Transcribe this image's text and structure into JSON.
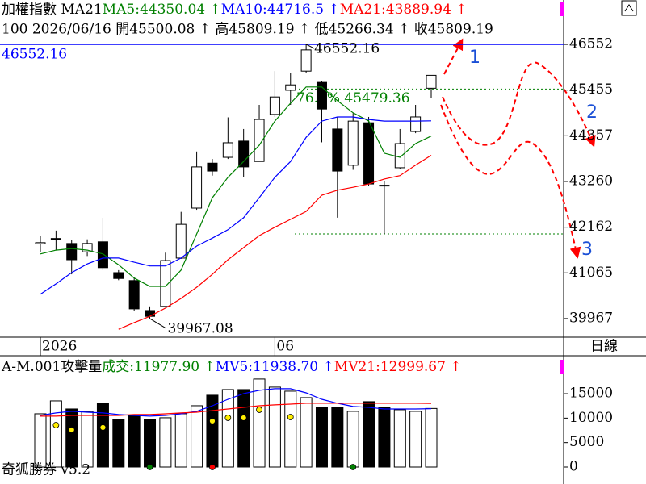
{
  "chart_data": [
    {
      "type": "candlestick",
      "title": "加權指數 MA21",
      "subtitle": "100 2026/06/16 開45500.08 ↑ 高45809.19 ↑ 低45266.34 ↑ 收45809.19",
      "period": "日線",
      "categories": [
        "2026",
        null,
        null,
        null,
        null,
        null,
        null,
        null,
        null,
        null,
        null,
        null,
        null,
        null,
        null,
        "06",
        null,
        null,
        null,
        null,
        null,
        null,
        null,
        null,
        null,
        null
      ],
      "open": [
        41760,
        41880,
        41770,
        41570,
        41810,
        41070,
        40880,
        40160,
        40260,
        41420,
        42620,
        43700,
        43840,
        44230,
        43740,
        44870,
        45450,
        45910,
        45640,
        44520,
        43650,
        44670,
        43170,
        43590,
        44460,
        45500.08
      ],
      "high": [
        41960,
        42080,
        41850,
        41870,
        42390,
        41130,
        40960,
        40260,
        41550,
        42530,
        43980,
        43800,
        44800,
        44520,
        45100,
        45910,
        45870,
        46552.16,
        45680,
        44810,
        44900,
        44810,
        43260,
        44520,
        45100,
        45809.19
      ],
      "low": [
        41570,
        41610,
        41030,
        41470,
        41130,
        40890,
        40160,
        39967.08,
        40240,
        41400,
        42580,
        43400,
        43800,
        43360,
        43740,
        44810,
        45100,
        45870,
        44200,
        42390,
        43540,
        43160,
        42000,
        43550,
        44420,
        45266.34
      ],
      "close": [
        41790,
        41890,
        41380,
        41770,
        41190,
        40930,
        40200,
        40020,
        41360,
        42230,
        43610,
        43510,
        44190,
        43610,
        44750,
        45290,
        45580,
        46420,
        45000,
        43510,
        44710,
        43200,
        43160,
        44170,
        44810,
        45809.19
      ],
      "series": [
        {
          "name": "MA5:44350.04 ↑",
          "color": "#008000",
          "values": [
            41520,
            41610,
            41650,
            41610,
            41520,
            41260,
            40940,
            40740,
            40740,
            41130,
            42000,
            42870,
            43360,
            43740,
            44130,
            44710,
            45140,
            45530,
            45530,
            45200,
            44910,
            44710,
            43940,
            43840,
            44170,
            44350.04
          ]
        },
        {
          "name": "MA10:44716.5 ↑",
          "color": "#0000ff",
          "values": [
            40550,
            40800,
            41070,
            41280,
            41420,
            41420,
            41320,
            41230,
            41230,
            41420,
            41710,
            41900,
            42100,
            42390,
            42870,
            43360,
            43740,
            44320,
            44710,
            44810,
            44810,
            44750,
            44710,
            44710,
            44710,
            44716.5
          ]
        },
        {
          "name": "MA21:43889.94 ↑",
          "color": "#ff0000",
          "values": [
            null,
            null,
            null,
            null,
            null,
            39710,
            39870,
            40020,
            40220,
            40450,
            40720,
            41030,
            41380,
            41670,
            41960,
            42160,
            42350,
            42540,
            42930,
            43050,
            43120,
            43200,
            43320,
            43400,
            43650,
            43889.94
          ]
        }
      ],
      "ylim": [
        39520,
        46650
      ],
      "yticks": [
        46552,
        45455,
        44357,
        43260,
        42162,
        41065,
        39967
      ],
      "reference_lines": [
        {
          "value": 46552.16,
          "color": "#0000ff",
          "label": "46552.16"
        },
        {
          "value": 45479.36,
          "color": "#008000",
          "label": "76.4% 45479.36"
        },
        {
          "value": 42000,
          "color": "#008000"
        }
      ],
      "annotations": {
        "max_label": "46552.16",
        "min_label": "39967.08",
        "waves": [
          "1",
          "2",
          "3"
        ]
      }
    },
    {
      "type": "bar",
      "title": "A-M.001攻擊量",
      "name": "成交:11977.90 ↑",
      "color": "#008000",
      "values": [
        10890,
        13530,
        11880,
        11390,
        13040,
        9740,
        10560,
        9740,
        10070,
        10890,
        12540,
        14690,
        15840,
        15840,
        17990,
        16340,
        15510,
        14190,
        12210,
        12210,
        11390,
        13370,
        12210,
        11720,
        11390,
        11977.9
      ],
      "series": [
        {
          "name": "MV5:11938.70 ↑",
          "color": "#0000ff",
          "values": [
            10560,
            11060,
            11390,
            11220,
            11060,
            10730,
            10560,
            10400,
            10560,
            10890,
            11390,
            12540,
            13860,
            15020,
            15680,
            16010,
            16010,
            15180,
            13860,
            13040,
            12380,
            12210,
            11880,
            11880,
            11880,
            11938.7
          ]
        },
        {
          "name": "MV21:12999.67 ↑",
          "color": "#ff0000",
          "values": [
            10400,
            10400,
            10560,
            10560,
            10560,
            10560,
            10730,
            10730,
            10890,
            11060,
            11220,
            11550,
            11880,
            12210,
            12540,
            12710,
            12870,
            13040,
            13040,
            13040,
            13040,
            13040,
            13040,
            13040,
            13040,
            12999.67
          ]
        },
        {
          "type": "dot",
          "color": "#ffee00",
          "values": [
            null,
            8580,
            7590,
            null,
            8090,
            null,
            null,
            null,
            null,
            null,
            null,
            9410,
            10070,
            10070,
            11720,
            null,
            10230,
            null,
            null,
            null,
            null,
            null,
            null,
            null,
            null,
            null
          ]
        },
        {
          "type": "dot",
          "color": "#008000",
          "values": [
            null,
            null,
            null,
            null,
            null,
            null,
            null,
            0,
            null,
            null,
            null,
            null,
            null,
            null,
            null,
            null,
            null,
            null,
            null,
            null,
            0,
            null,
            null,
            null,
            null,
            null
          ]
        },
        {
          "type": "dot",
          "color": "#ff0000",
          "values": [
            null,
            null,
            null,
            null,
            null,
            null,
            null,
            null,
            null,
            null,
            null,
            0,
            null,
            null,
            null,
            null,
            null,
            null,
            null,
            null,
            null,
            null,
            null,
            null,
            null,
            null
          ]
        }
      ],
      "ylim": [
        0,
        18800
      ],
      "yticks": [
        0,
        5000,
        10000,
        15000
      ]
    }
  ],
  "footer": "奇狐勝券 v5.2"
}
